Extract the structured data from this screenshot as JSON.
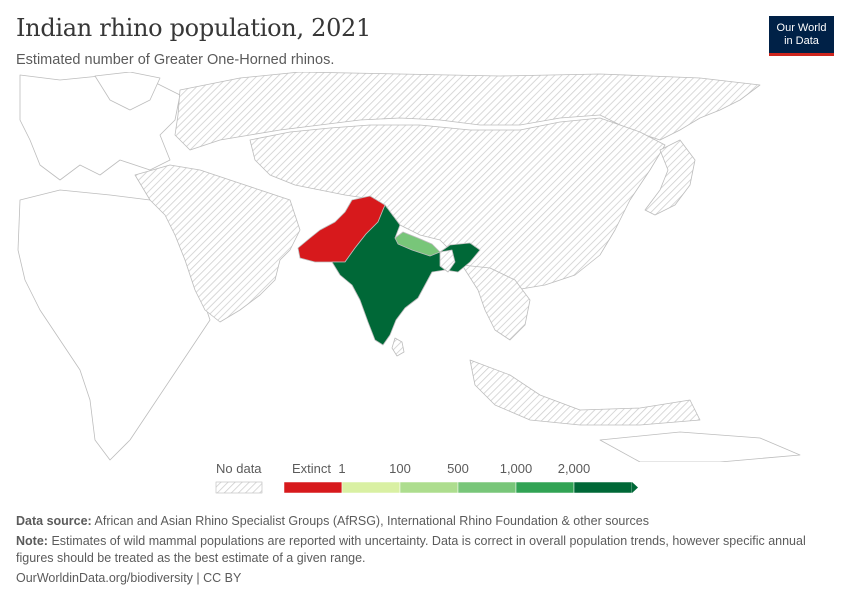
{
  "header": {
    "title": "Indian rhino population, 2021",
    "subtitle": "Estimated number of Greater One-Horned rhinos.",
    "logo_line1": "Our World",
    "logo_line2": "in Data"
  },
  "map": {
    "region": "Asia",
    "countries_with_data": [
      {
        "name": "India",
        "category": "2,000+",
        "color": "#006837"
      },
      {
        "name": "Nepal",
        "category": "500–1,000",
        "color": "#78c679"
      },
      {
        "name": "Pakistan",
        "category": "Extinct",
        "color": "#d7191c"
      }
    ],
    "no_data_pattern": "grey-hatched",
    "other_land_color": "#ffffff"
  },
  "legend": {
    "no_data_label": "No data",
    "bins": [
      {
        "label": "Extinct",
        "color": "#d7191c"
      },
      {
        "label": "1",
        "color": "#d9f0a3"
      },
      {
        "label": "100",
        "color": "#addd8e"
      },
      {
        "label": "500",
        "color": "#78c679"
      },
      {
        "label": "1,000",
        "color": "#31a354"
      },
      {
        "label": "2,000",
        "color": "#006837"
      }
    ]
  },
  "footer": {
    "source_label": "Data source:",
    "source_text": "African and Asian Rhino Specialist Groups (AfRSG), International Rhino Foundation & other sources",
    "note_label": "Note:",
    "note_text": "Estimates of wild mammal populations are reported with uncertainty. Data is correct in overall population trends, however specific annual figures should be treated as the best estimate of a given range.",
    "url": "OurWorldinData.org/biodiversity | CC BY"
  }
}
